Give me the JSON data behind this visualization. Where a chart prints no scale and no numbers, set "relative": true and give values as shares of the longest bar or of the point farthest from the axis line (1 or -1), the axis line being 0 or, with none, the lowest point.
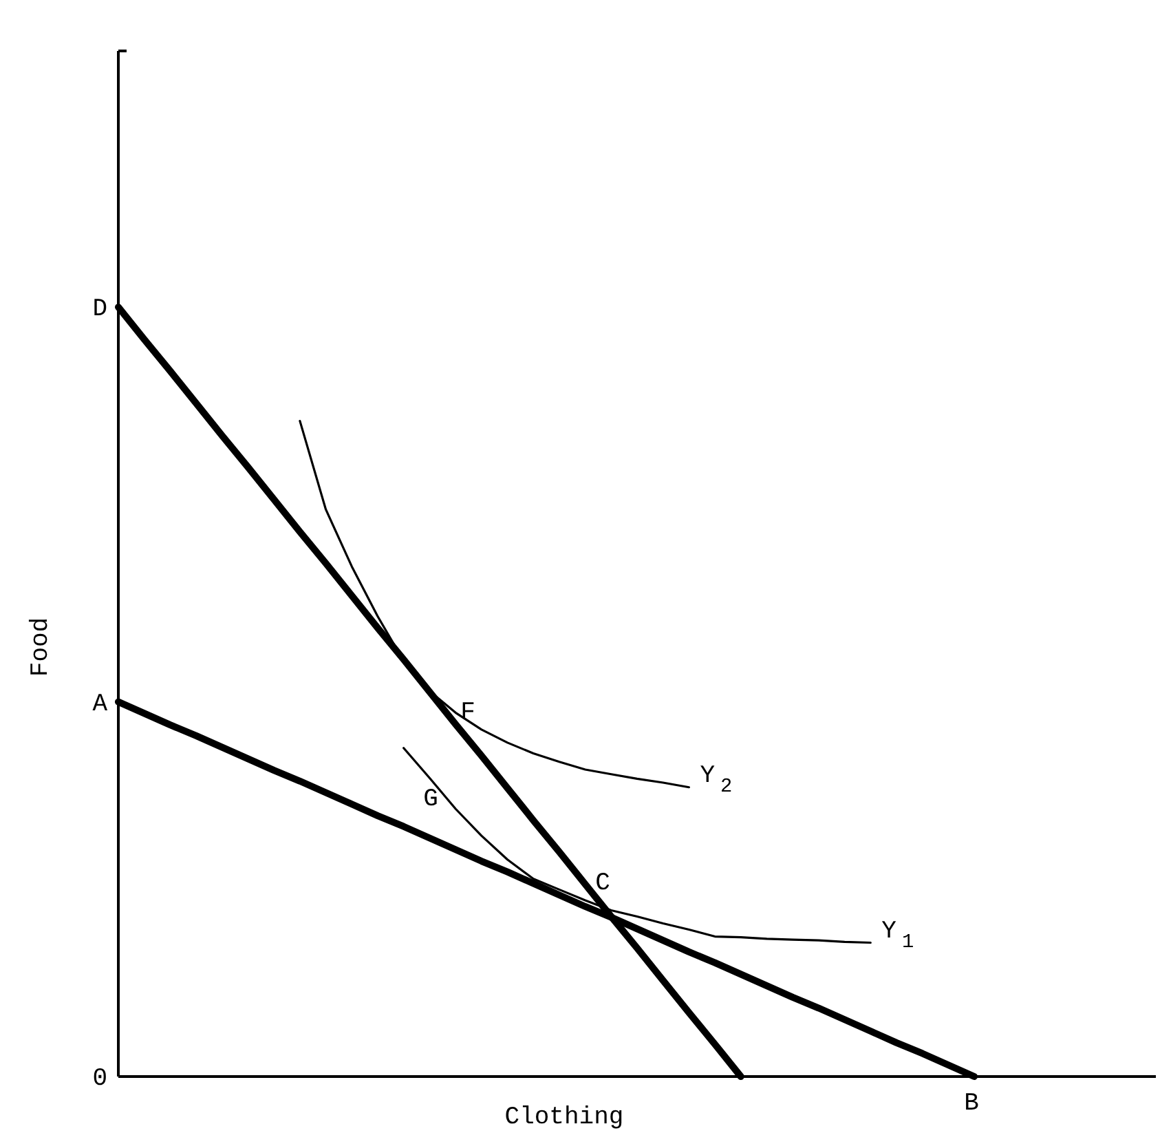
{
  "chart_data": {
    "type": "line",
    "relative": true,
    "xlabel": "Clothing",
    "ylabel": "Food",
    "line_style": "solid",
    "categories": [
      null,
      null,
      null,
      null,
      null,
      null,
      null,
      null,
      null,
      null,
      null,
      null,
      null,
      null,
      null,
      null,
      null,
      null,
      null,
      null,
      null,
      null,
      null,
      null,
      null,
      null,
      null,
      null,
      null,
      null,
      null,
      null,
      null,
      null,
      null,
      null,
      null,
      null,
      null,
      null,
      null
    ],
    "series": [
      {
        "color": "#000000",
        "values": [
          1,
          0.958,
          0.917,
          0.875,
          0.833,
          0.792,
          0.75,
          0.708,
          0.667,
          0.625,
          0.583,
          0.542,
          0.5,
          0.458,
          0.417,
          0.375,
          0.333,
          0.292,
          0.25,
          0.208,
          0.167,
          0.125,
          0.083,
          0.042,
          0,
          null,
          null,
          null,
          null,
          null,
          null,
          null,
          null,
          null,
          null,
          null,
          null,
          null,
          null,
          null,
          null
        ]
      },
      {
        "color": "#000000",
        "values": [
          0.487,
          0.472,
          0.457,
          0.443,
          0.428,
          0.413,
          0.398,
          0.384,
          0.369,
          0.354,
          0.339,
          0.325,
          0.31,
          0.295,
          0.28,
          0.266,
          0.251,
          0.236,
          0.221,
          0.207,
          0.192,
          0.177,
          0.162,
          0.148,
          0.133,
          0.118,
          0.103,
          0.089,
          0.074,
          0.059,
          0.044,
          0.03,
          0.015,
          0,
          null,
          null,
          null,
          null,
          null,
          null,
          null
        ]
      },
      {
        "name": "Y$_{2}$",
        "color": "#000000",
        "values": [
          null,
          null,
          null,
          null,
          null,
          null,
          null,
          0.852,
          0.737,
          0.663,
          0.598,
          0.54,
          0.501,
          0.473,
          0.451,
          0.434,
          0.42,
          0.409,
          0.399,
          0.393,
          0.387,
          0.382,
          0.376,
          null,
          null,
          null,
          null,
          null,
          null,
          null,
          null,
          null,
          null,
          null,
          null,
          null,
          null,
          null,
          null,
          null,
          null
        ]
      },
      {
        "name": "Y$_{1}$",
        "color": "#000000",
        "values": [
          null,
          null,
          null,
          null,
          null,
          null,
          null,
          null,
          null,
          null,
          null,
          0.427,
          0.388,
          0.348,
          0.313,
          0.282,
          0.257,
          0.243,
          0.229,
          0.216,
          0.208,
          0.199,
          0.191,
          0.182,
          0.181,
          0.179,
          0.178,
          0.177,
          0.175,
          0.174,
          null,
          null,
          null,
          null,
          null,
          null,
          null,
          null,
          null,
          null,
          null
        ]
      }
    ],
    "annotations": [
      "D",
      "A",
      "0",
      "B",
      "F",
      "G",
      "C"
    ]
  }
}
